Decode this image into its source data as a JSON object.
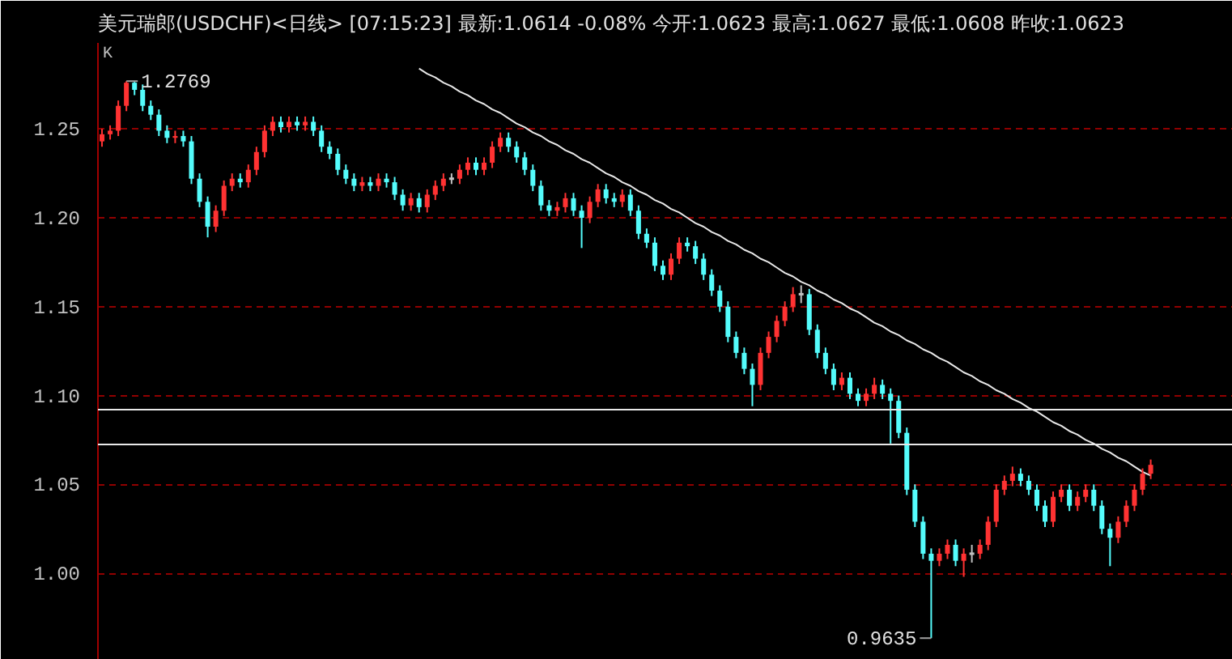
{
  "chart_data": {
    "type": "candlestick",
    "title": "美元瑞郎(USDCHF)<日线>  [07:15:23] 最新:1.0614 -0.08%  今开:1.0623  最高:1.0627  最低:1.0608  昨收:1.0623",
    "categories": [
      null,
      null,
      null,
      null,
      null,
      null,
      null,
      null,
      null,
      null,
      null,
      null,
      null,
      null,
      null,
      null,
      null,
      null,
      null,
      null,
      null,
      null,
      null,
      null,
      null,
      null,
      null,
      null,
      null,
      null,
      null,
      null,
      null,
      null,
      null,
      null,
      null,
      null,
      null,
      null,
      null,
      null,
      null,
      null,
      null,
      null,
      null,
      null,
      null,
      null,
      null,
      null,
      null,
      null,
      null,
      null,
      null,
      null,
      null,
      null,
      null,
      null,
      null,
      null,
      null,
      null,
      null,
      null,
      null,
      null,
      null,
      null,
      null,
      null,
      null,
      null,
      null,
      null,
      null,
      null,
      null,
      null,
      null,
      null,
      null,
      null,
      null,
      null,
      null,
      null,
      null,
      null,
      null,
      null,
      null,
      null,
      null,
      null,
      null,
      null,
      null,
      null,
      null,
      null,
      null,
      null,
      null,
      null,
      null,
      null,
      null,
      null,
      null,
      null,
      null,
      null,
      null,
      null,
      null,
      null,
      null,
      null,
      null,
      null,
      null,
      null,
      null,
      null,
      null,
      null
    ],
    "ohlc": [
      [
        1.243,
        1.25,
        1.24,
        1.247
      ],
      [
        1.247,
        1.252,
        1.244,
        1.249
      ],
      [
        1.249,
        1.266,
        1.246,
        1.263
      ],
      [
        1.263,
        1.2769,
        1.26,
        1.276
      ],
      [
        1.276,
        1.2765,
        1.269,
        1.272
      ],
      [
        1.272,
        1.275,
        1.26,
        1.263
      ],
      [
        1.263,
        1.266,
        1.255,
        1.258
      ],
      [
        1.258,
        1.261,
        1.246,
        1.249
      ],
      [
        1.249,
        1.252,
        1.242,
        1.245
      ],
      [
        1.245,
        1.249,
        1.242,
        1.246
      ],
      [
        1.246,
        1.249,
        1.24,
        1.243
      ],
      [
        1.243,
        1.246,
        1.219,
        1.222
      ],
      [
        1.222,
        1.225,
        1.206,
        1.209
      ],
      [
        1.209,
        1.212,
        1.189,
        1.195
      ],
      [
        1.195,
        1.207,
        1.192,
        1.204
      ],
      [
        1.204,
        1.221,
        1.201,
        1.218
      ],
      [
        1.218,
        1.225,
        1.215,
        1.222
      ],
      [
        1.222,
        1.225,
        1.217,
        1.22
      ],
      [
        1.22,
        1.23,
        1.217,
        1.227
      ],
      [
        1.227,
        1.24,
        1.224,
        1.237
      ],
      [
        1.237,
        1.252,
        1.234,
        1.249
      ],
      [
        1.249,
        1.257,
        1.246,
        1.254
      ],
      [
        1.254,
        1.257,
        1.248,
        1.251
      ],
      [
        1.251,
        1.257,
        1.248,
        1.254
      ],
      [
        1.254,
        1.257,
        1.249,
        1.252
      ],
      [
        1.252,
        1.257,
        1.249,
        1.254
      ],
      [
        1.254,
        1.257,
        1.246,
        1.249
      ],
      [
        1.249,
        1.252,
        1.237,
        1.24
      ],
      [
        1.24,
        1.243,
        1.233,
        1.236
      ],
      [
        1.236,
        1.239,
        1.224,
        1.227
      ],
      [
        1.227,
        1.23,
        1.219,
        1.222
      ],
      [
        1.222,
        1.225,
        1.215,
        1.218
      ],
      [
        1.218,
        1.223,
        1.215,
        1.22
      ],
      [
        1.22,
        1.223,
        1.215,
        1.218
      ],
      [
        1.218,
        1.225,
        1.215,
        1.222
      ],
      [
        1.222,
        1.225,
        1.217,
        1.22
      ],
      [
        1.22,
        1.223,
        1.21,
        1.213
      ],
      [
        1.213,
        1.216,
        1.204,
        1.207
      ],
      [
        1.207,
        1.214,
        1.204,
        1.211
      ],
      [
        1.211,
        1.214,
        1.203,
        1.206
      ],
      [
        1.206,
        1.216,
        1.203,
        1.213
      ],
      [
        1.213,
        1.221,
        1.21,
        1.218
      ],
      [
        1.218,
        1.225,
        1.215,
        1.222
      ],
      [
        1.222,
        1.225,
        1.219,
        1.222
      ],
      [
        1.222,
        1.23,
        1.219,
        1.227
      ],
      [
        1.227,
        1.234,
        1.224,
        1.231
      ],
      [
        1.231,
        1.234,
        1.224,
        1.227
      ],
      [
        1.227,
        1.234,
        1.224,
        1.231
      ],
      [
        1.231,
        1.243,
        1.228,
        1.24
      ],
      [
        1.24,
        1.248,
        1.237,
        1.245
      ],
      [
        1.245,
        1.248,
        1.237,
        1.24
      ],
      [
        1.24,
        1.243,
        1.231,
        1.234
      ],
      [
        1.234,
        1.237,
        1.224,
        1.227
      ],
      [
        1.227,
        1.23,
        1.215,
        1.218
      ],
      [
        1.218,
        1.221,
        1.204,
        1.207
      ],
      [
        1.207,
        1.21,
        1.201,
        1.204
      ],
      [
        1.204,
        1.209,
        1.201,
        1.206
      ],
      [
        1.206,
        1.214,
        1.203,
        1.211
      ],
      [
        1.211,
        1.214,
        1.201,
        1.204
      ],
      [
        1.204,
        1.207,
        1.183,
        1.2
      ],
      [
        1.2,
        1.212,
        1.197,
        1.209
      ],
      [
        1.209,
        1.219,
        1.206,
        1.216
      ],
      [
        1.216,
        1.219,
        1.208,
        1.211
      ],
      [
        1.211,
        1.214,
        1.206,
        1.209
      ],
      [
        1.209,
        1.216,
        1.206,
        1.213
      ],
      [
        1.213,
        1.216,
        1.201,
        1.204
      ],
      [
        1.204,
        1.207,
        1.188,
        1.191
      ],
      [
        1.191,
        1.194,
        1.183,
        1.186
      ],
      [
        1.186,
        1.189,
        1.17,
        1.173
      ],
      [
        1.173,
        1.176,
        1.165,
        1.168
      ],
      [
        1.168,
        1.18,
        1.165,
        1.177
      ],
      [
        1.177,
        1.189,
        1.174,
        1.186
      ],
      [
        1.186,
        1.189,
        1.181,
        1.184
      ],
      [
        1.184,
        1.187,
        1.174,
        1.177
      ],
      [
        1.177,
        1.18,
        1.165,
        1.168
      ],
      [
        1.168,
        1.171,
        1.156,
        1.159
      ],
      [
        1.159,
        1.162,
        1.147,
        1.15
      ],
      [
        1.15,
        1.153,
        1.13,
        1.133
      ],
      [
        1.133,
        1.136,
        1.121,
        1.124
      ],
      [
        1.124,
        1.127,
        1.112,
        1.115
      ],
      [
        1.115,
        1.118,
        1.094,
        1.106
      ],
      [
        1.106,
        1.127,
        1.103,
        1.124
      ],
      [
        1.124,
        1.136,
        1.121,
        1.133
      ],
      [
        1.133,
        1.145,
        1.13,
        1.142
      ],
      [
        1.142,
        1.153,
        1.139,
        1.15
      ],
      [
        1.15,
        1.161,
        1.147,
        1.157
      ],
      [
        1.157,
        1.162,
        1.152,
        1.157
      ],
      [
        1.157,
        1.16,
        1.134,
        1.137
      ],
      [
        1.137,
        1.14,
        1.121,
        1.124
      ],
      [
        1.124,
        1.127,
        1.112,
        1.115
      ],
      [
        1.115,
        1.118,
        1.103,
        1.106
      ],
      [
        1.106,
        1.113,
        1.103,
        1.11
      ],
      [
        1.11,
        1.113,
        1.098,
        1.101
      ],
      [
        1.101,
        1.104,
        1.094,
        1.097
      ],
      [
        1.097,
        1.104,
        1.094,
        1.101
      ],
      [
        1.101,
        1.11,
        1.098,
        1.106
      ],
      [
        1.106,
        1.109,
        1.098,
        1.101
      ],
      [
        1.101,
        1.104,
        1.073,
        1.097
      ],
      [
        1.097,
        1.1,
        1.076,
        1.079
      ],
      [
        1.079,
        1.082,
        1.044,
        1.047
      ],
      [
        1.047,
        1.05,
        1.026,
        1.029
      ],
      [
        1.029,
        1.032,
        1.008,
        1.011
      ],
      [
        1.011,
        1.014,
        0.9635,
        1.007
      ],
      [
        1.007,
        1.014,
        1.004,
        1.011
      ],
      [
        1.011,
        1.019,
        1.008,
        1.016
      ],
      [
        1.016,
        1.019,
        1.004,
        1.007
      ],
      [
        1.007,
        1.014,
        0.998,
        1.011
      ],
      [
        1.011,
        1.016,
        1.006,
        1.011
      ],
      [
        1.011,
        1.019,
        1.008,
        1.016
      ],
      [
        1.016,
        1.032,
        1.013,
        1.029
      ],
      [
        1.029,
        1.05,
        1.026,
        1.047
      ],
      [
        1.047,
        1.055,
        1.044,
        1.052
      ],
      [
        1.052,
        1.06,
        1.049,
        1.056
      ],
      [
        1.056,
        1.059,
        1.049,
        1.052
      ],
      [
        1.052,
        1.055,
        1.044,
        1.047
      ],
      [
        1.047,
        1.05,
        1.035,
        1.038
      ],
      [
        1.038,
        1.041,
        1.026,
        1.029
      ],
      [
        1.029,
        1.046,
        1.026,
        1.043
      ],
      [
        1.043,
        1.05,
        1.04,
        1.047
      ],
      [
        1.047,
        1.05,
        1.035,
        1.038
      ],
      [
        1.038,
        1.046,
        1.035,
        1.043
      ],
      [
        1.043,
        1.05,
        1.04,
        1.047
      ],
      [
        1.047,
        1.05,
        1.035,
        1.038
      ],
      [
        1.038,
        1.041,
        1.022,
        1.025
      ],
      [
        1.025,
        1.028,
        1.004,
        1.02
      ],
      [
        1.02,
        1.032,
        1.017,
        1.029
      ],
      [
        1.029,
        1.041,
        1.026,
        1.038
      ],
      [
        1.038,
        1.05,
        1.035,
        1.047
      ],
      [
        1.047,
        1.059,
        1.044,
        1.056
      ],
      [
        1.056,
        1.064,
        1.053,
        1.061
      ]
    ],
    "colors": [
      "#ff3232",
      "#ff3232",
      "#ff3232",
      "#ff3232",
      "#54fcfc",
      "#54fcfc",
      "#54fcfc",
      "#54fcfc",
      "#54fcfc",
      "#ff3232",
      "#54fcfc",
      "#54fcfc",
      "#54fcfc",
      "#54fcfc",
      "#ff3232",
      "#ff3232",
      "#ff3232",
      "#54fcfc",
      "#ff3232",
      "#ff3232",
      "#ff3232",
      "#ff3232",
      "#54fcfc",
      "#ff3232",
      "#54fcfc",
      "#ff3232",
      "#54fcfc",
      "#54fcfc",
      "#54fcfc",
      "#54fcfc",
      "#54fcfc",
      "#54fcfc",
      "#ff3232",
      "#54fcfc",
      "#ff3232",
      "#54fcfc",
      "#54fcfc",
      "#54fcfc",
      "#ff3232",
      "#54fcfc",
      "#ff3232",
      "#ff3232",
      "#ff3232",
      "#c0c0c0",
      "#ff3232",
      "#ff3232",
      "#54fcfc",
      "#ff3232",
      "#ff3232",
      "#ff3232",
      "#54fcfc",
      "#54fcfc",
      "#54fcfc",
      "#54fcfc",
      "#54fcfc",
      "#54fcfc",
      "#ff3232",
      "#ff3232",
      "#54fcfc",
      "#54fcfc",
      "#ff3232",
      "#ff3232",
      "#54fcfc",
      "#54fcfc",
      "#ff3232",
      "#54fcfc",
      "#54fcfc",
      "#54fcfc",
      "#54fcfc",
      "#54fcfc",
      "#ff3232",
      "#ff3232",
      "#54fcfc",
      "#54fcfc",
      "#54fcfc",
      "#54fcfc",
      "#54fcfc",
      "#54fcfc",
      "#54fcfc",
      "#54fcfc",
      "#54fcfc",
      "#ff3232",
      "#ff3232",
      "#ff3232",
      "#ff3232",
      "#ff3232",
      "#c0c0c0",
      "#54fcfc",
      "#54fcfc",
      "#54fcfc",
      "#54fcfc",
      "#ff3232",
      "#54fcfc",
      "#54fcfc",
      "#ff3232",
      "#ff3232",
      "#54fcfc",
      "#54fcfc",
      "#54fcfc",
      "#54fcfc",
      "#54fcfc",
      "#54fcfc",
      "#54fcfc",
      "#ff3232",
      "#ff3232",
      "#54fcfc",
      "#ff3232",
      "#c0c0c0",
      "#ff3232",
      "#ff3232",
      "#ff3232",
      "#ff3232",
      "#ff3232",
      "#54fcfc",
      "#54fcfc",
      "#54fcfc",
      "#54fcfc",
      "#ff3232",
      "#ff3232",
      "#54fcfc",
      "#ff3232",
      "#ff3232",
      "#54fcfc",
      "#54fcfc",
      "#54fcfc",
      "#ff3232",
      "#ff3232",
      "#ff3232",
      "#ff3232",
      "#ff3232"
    ],
    "series": [
      {
        "type": "line",
        "color": "#e8e8e8",
        "values": [
          null,
          null,
          null,
          null,
          null,
          null,
          null,
          null,
          null,
          null,
          null,
          null,
          null,
          null,
          null,
          null,
          null,
          null,
          null,
          null,
          null,
          null,
          null,
          null,
          null,
          null,
          null,
          null,
          null,
          null,
          null,
          null,
          null,
          null,
          null,
          null,
          null,
          null,
          null,
          1.284,
          1.281,
          1.279,
          1.276,
          1.274,
          1.271,
          1.269,
          1.266,
          1.264,
          1.261,
          1.259,
          1.256,
          1.253,
          1.251,
          1.248,
          1.246,
          1.243,
          1.241,
          1.238,
          1.236,
          1.233,
          1.231,
          1.228,
          1.225,
          1.223,
          1.22,
          1.218,
          1.215,
          1.213,
          1.21,
          1.208,
          1.205,
          1.203,
          1.2,
          1.197,
          1.195,
          1.192,
          1.19,
          1.187,
          1.185,
          1.182,
          1.18,
          1.177,
          1.175,
          1.172,
          1.169,
          1.167,
          1.164,
          1.162,
          1.159,
          1.157,
          1.154,
          1.152,
          1.149,
          1.147,
          1.144,
          1.141,
          1.139,
          1.136,
          1.134,
          1.131,
          1.129,
          1.126,
          1.124,
          1.121,
          1.119,
          1.116,
          1.113,
          1.111,
          1.108,
          1.106,
          1.103,
          1.101,
          1.098,
          1.096,
          1.093,
          1.091,
          1.088,
          1.085,
          1.083,
          1.08,
          1.078,
          1.075,
          1.073,
          1.07,
          1.068,
          1.065,
          1.063,
          1.06,
          1.057,
          1.055
        ]
      }
    ],
    "ref_lines": [
      {
        "axis": "y",
        "value": 1.092,
        "color": "#e8e8e8"
      },
      {
        "axis": "y",
        "value": 1.0725,
        "color": "#e8e8e8"
      }
    ],
    "annotations": [
      "K",
      "1.2769",
      "0.9635"
    ],
    "ylim": [
      0.9513,
      1.2984
    ],
    "yticks": [
      {
        "value": 1.0,
        "label": "1.00"
      },
      {
        "value": 1.05,
        "label": "1.05"
      },
      {
        "value": 1.1,
        "label": "1.10"
      },
      {
        "value": 1.15,
        "label": "1.15"
      },
      {
        "value": 1.2,
        "label": "1.20"
      },
      {
        "value": 1.25,
        "label": "1.25"
      }
    ],
    "grid": "y",
    "tick_labels": "y"
  }
}
